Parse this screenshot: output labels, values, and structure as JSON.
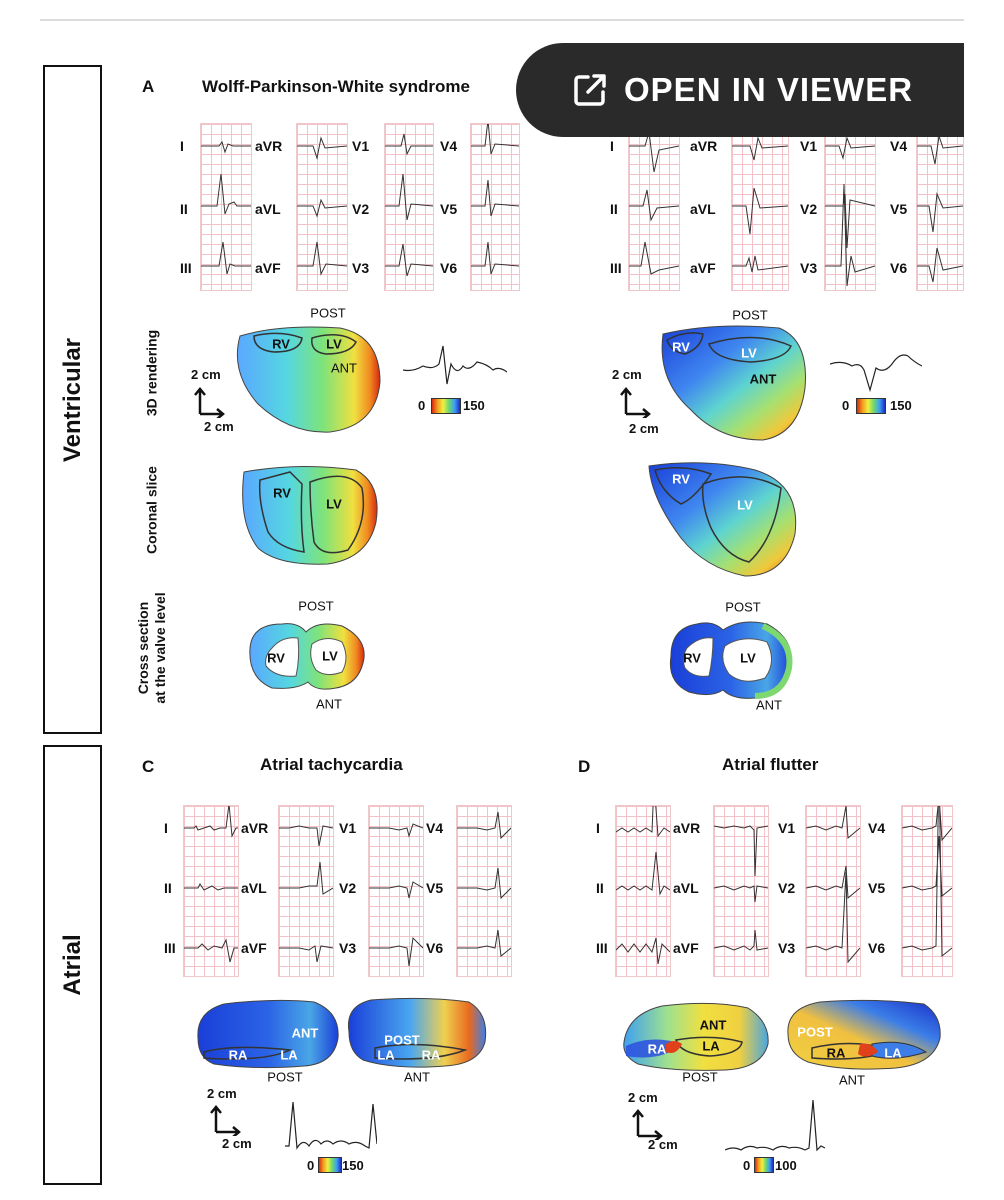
{
  "viewer": {
    "label": "OPEN IN VIEWER",
    "icon": "open-external-icon"
  },
  "sections": {
    "ventricular": "Ventricular",
    "atrial": "Atrial"
  },
  "row_labels": {
    "rendering": "3D rendering",
    "coronal": "Coronal slice",
    "cross_l1": "Cross section",
    "cross_l2": "at the valve level"
  },
  "scale": {
    "unit": "2 cm"
  },
  "leads": [
    "I",
    "II",
    "III",
    "aVR",
    "aVL",
    "aVF",
    "V1",
    "V2",
    "V3",
    "V4",
    "V5",
    "V6"
  ],
  "panelA": {
    "letter": "A",
    "title": "Wolff-Parkinson-White syndrome",
    "colorbar_min": "0",
    "colorbar_max": "150"
  },
  "panelB": {
    "colorbar_min": "0",
    "colorbar_max": "150"
  },
  "panelC": {
    "letter": "C",
    "title": "Atrial tachycardia",
    "colorbar_min": "0",
    "colorbar_max": "150"
  },
  "panelD": {
    "letter": "D",
    "title": "Atrial flutter",
    "colorbar_min": "0",
    "colorbar_max": "100"
  },
  "anatomy": {
    "rv": "RV",
    "lv": "LV",
    "ra": "RA",
    "la": "LA",
    "post": "POST",
    "ant": "ANT"
  }
}
